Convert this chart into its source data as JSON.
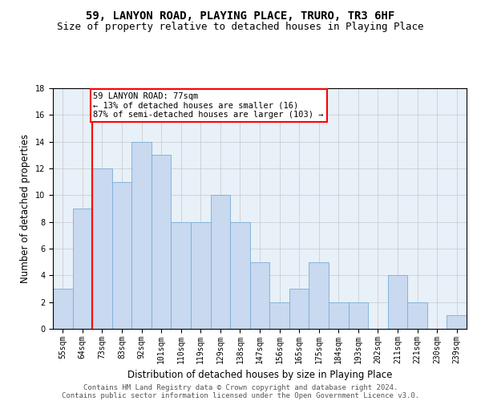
{
  "title": "59, LANYON ROAD, PLAYING PLACE, TRURO, TR3 6HF",
  "subtitle": "Size of property relative to detached houses in Playing Place",
  "xlabel": "Distribution of detached houses by size in Playing Place",
  "ylabel": "Number of detached properties",
  "bar_labels": [
    "55sqm",
    "64sqm",
    "73sqm",
    "83sqm",
    "92sqm",
    "101sqm",
    "110sqm",
    "119sqm",
    "129sqm",
    "138sqm",
    "147sqm",
    "156sqm",
    "165sqm",
    "175sqm",
    "184sqm",
    "193sqm",
    "202sqm",
    "211sqm",
    "221sqm",
    "230sqm",
    "239sqm"
  ],
  "bar_values": [
    3,
    9,
    12,
    11,
    14,
    13,
    8,
    8,
    10,
    8,
    5,
    2,
    3,
    5,
    2,
    2,
    0,
    4,
    2,
    0,
    1
  ],
  "bar_color": "#c8d9f0",
  "bar_edge_color": "#7aadd4",
  "vline_x_index": 2,
  "vline_color": "red",
  "annotation_text": "59 LANYON ROAD: 77sqm\n← 13% of detached houses are smaller (16)\n87% of semi-detached houses are larger (103) →",
  "annotation_box_color": "white",
  "annotation_box_edge_color": "red",
  "ylim": [
    0,
    18
  ],
  "yticks": [
    0,
    2,
    4,
    6,
    8,
    10,
    12,
    14,
    16,
    18
  ],
  "grid_color": "#c8c8c8",
  "background_color": "#e8f0f8",
  "footer_line1": "Contains HM Land Registry data © Crown copyright and database right 2024.",
  "footer_line2": "Contains public sector information licensed under the Open Government Licence v3.0.",
  "title_fontsize": 10,
  "subtitle_fontsize": 9,
  "axis_label_fontsize": 8.5,
  "tick_fontsize": 7,
  "annotation_fontsize": 7.5,
  "footer_fontsize": 6.5
}
